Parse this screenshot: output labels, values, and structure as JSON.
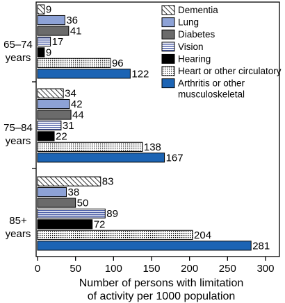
{
  "chart_data": {
    "type": "bar",
    "orientation": "horizontal",
    "categories": [
      "65–74 years",
      "75–84 years",
      "85+ years"
    ],
    "category_lines": [
      [
        "65–74",
        "years"
      ],
      [
        "75–84",
        "years"
      ],
      [
        "85+",
        "years"
      ]
    ],
    "series": [
      {
        "name": "Dementia",
        "values": [
          9,
          34,
          83
        ],
        "pattern": "diagonal-hatch",
        "color": "#ffffff"
      },
      {
        "name": "Lung",
        "values": [
          36,
          42,
          38
        ],
        "pattern": "solid",
        "color": "#8da2d6"
      },
      {
        "name": "Diabetes",
        "values": [
          41,
          44,
          50
        ],
        "pattern": "solid",
        "color": "#6b6b6b"
      },
      {
        "name": "Vision",
        "values": [
          17,
          31,
          89
        ],
        "pattern": "horizontal-stripes",
        "color": "#4d5fa8"
      },
      {
        "name": "Hearing",
        "values": [
          9,
          22,
          72
        ],
        "pattern": "solid",
        "color": "#000000"
      },
      {
        "name": "Heart or other circulatory",
        "values": [
          96,
          138,
          204
        ],
        "pattern": "dots",
        "color": "#ffffff"
      },
      {
        "name": "Arthritis or other musculoskeletal",
        "values": [
          122,
          167,
          281
        ],
        "pattern": "solid",
        "color": "#1c64b4"
      }
    ],
    "legend_lines": [
      [
        "Dementia"
      ],
      [
        "Lung"
      ],
      [
        "Diabetes"
      ],
      [
        "Vision"
      ],
      [
        "Hearing"
      ],
      [
        "Heart or other circulatory"
      ],
      [
        "Arthritis or other",
        "musculoskeletal"
      ]
    ],
    "xlabel_lines": [
      "Number of persons with limitation",
      "of activity per 1000 population"
    ],
    "xticks": [
      0,
      50,
      100,
      150,
      200,
      250,
      300
    ],
    "xlim": [
      0,
      320
    ],
    "grid": false,
    "legend_position": "top-right"
  }
}
